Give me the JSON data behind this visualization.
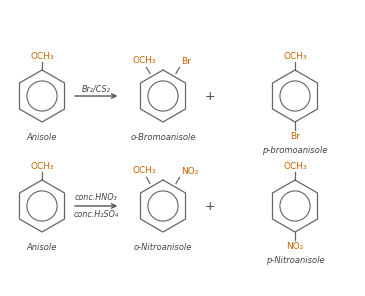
{
  "bg_color": "#ffffff",
  "blue_color": "#c86400",
  "black_color": "#444444",
  "ring_color": "#666666",
  "fs_mol": 6.5,
  "fs_label": 6.0,
  "fs_reagent": 5.8,
  "fs_plus": 9,
  "reaction1_reagent": "Br₂/CS₂",
  "reaction2_reagent1": "conc.HNO₃",
  "reaction2_reagent2": "conc.H₂SO₄",
  "anisole_label": "Anisole",
  "prod1a_label": "o-Bromoanisole",
  "prod1b_label": "p-bromoanisole",
  "prod2a_label": "o-Nitroanisole",
  "prod2b_label": "p-Nitroanisole",
  "OCH3": "OCH₃",
  "Br": "Br",
  "NO2": "NO₂",
  "plus": "+"
}
